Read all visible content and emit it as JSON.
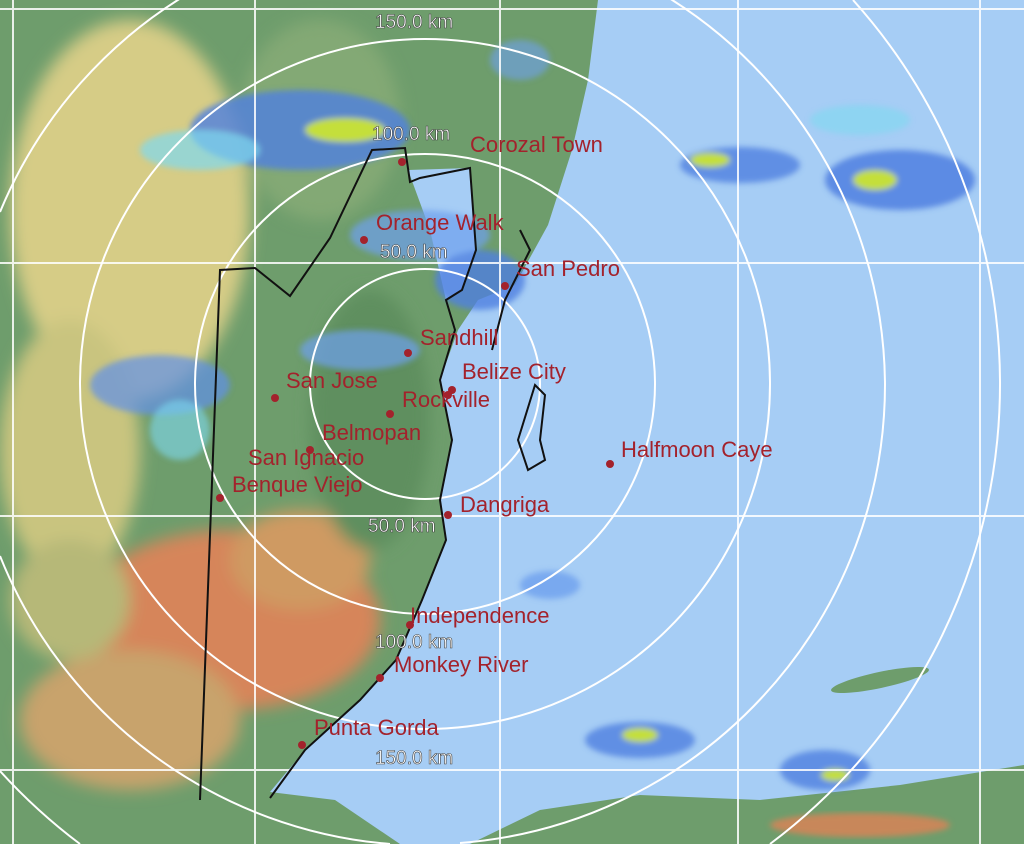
{
  "map": {
    "type": "weather radar composite",
    "colors": {
      "sea": "#a6cdf5",
      "land": "#6e9d6c",
      "city": "#a3222c",
      "rings": "#ffffff",
      "border": "#111111"
    },
    "range_rings": [
      {
        "label": "150.0 km"
      },
      {
        "label": "100.0 km"
      },
      {
        "label": "50.0 km"
      },
      {
        "label": "50.0 km"
      },
      {
        "label": "100.0 km"
      },
      {
        "label": "150.0 km"
      }
    ],
    "cities": [
      {
        "name": "Corozal Town"
      },
      {
        "name": "Orange Walk"
      },
      {
        "name": "San Pedro"
      },
      {
        "name": "Sandhill"
      },
      {
        "name": "Belize City"
      },
      {
        "name": "Rockville"
      },
      {
        "name": "San Jose"
      },
      {
        "name": "Belmopan"
      },
      {
        "name": "San Ignacio"
      },
      {
        "name": "Benque Viejo"
      },
      {
        "name": "Halfmoon Caye"
      },
      {
        "name": "Dangriga"
      },
      {
        "name": "Independence"
      },
      {
        "name": "Monkey River"
      },
      {
        "name": "Punta Gorda"
      }
    ]
  }
}
